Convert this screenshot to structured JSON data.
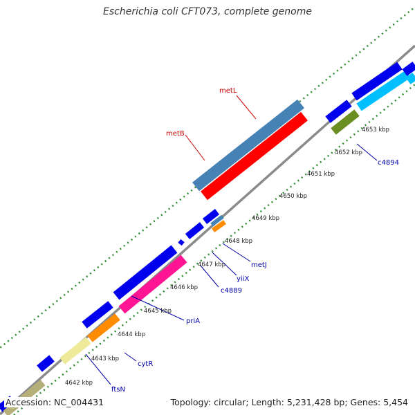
{
  "title": "Escherichia coli CFT073, complete genome",
  "footer": {
    "accession": "Accession: NC_004431",
    "summary": "Topology: circular; Length: 5,231,428 bp; Genes: 5,454"
  },
  "colors": {
    "backbone": "#8a8a8a",
    "tick_dots": "#2e8b2e",
    "label_blue": "#0000aa",
    "label_red": "#cc0000"
  },
  "scale_labels": [
    "4642 kbp",
    "4643 kbp",
    "4644 kbp",
    "4645 kbp",
    "4646 kbp",
    "4647 kbp",
    "4648 kbp",
    "4649 kbp",
    "4650 kbp",
    "4651 kbp",
    "4652 kbp",
    "4653 kbp"
  ],
  "gene_labels": [
    {
      "text": "ftsN",
      "color": "#0000aa"
    },
    {
      "text": "cytR",
      "color": "#0000aa"
    },
    {
      "text": "priA",
      "color": "#0000aa"
    },
    {
      "text": "c4889",
      "color": "#0000aa"
    },
    {
      "text": "yiiX",
      "color": "#0000aa"
    },
    {
      "text": "metJ",
      "color": "#0000aa"
    },
    {
      "text": "c4894",
      "color": "#0000aa"
    },
    {
      "text": "metB",
      "color": "#cc0000"
    },
    {
      "text": "metL",
      "color": "#cc0000"
    }
  ],
  "features": [
    {
      "name": "feature-1",
      "color": "#0000ee"
    },
    {
      "name": "feature-2",
      "color": "#b5b07a"
    },
    {
      "name": "ftsN-gene",
      "color": "#0000ee"
    },
    {
      "name": "feature-4",
      "color": "#eeea9a"
    },
    {
      "name": "cytR-gene",
      "color": "#ff8c00"
    },
    {
      "name": "feature-6",
      "color": "#0000ee"
    },
    {
      "name": "priA-gene",
      "color": "#ff1493"
    },
    {
      "name": "feature-8",
      "color": "#0000ee"
    },
    {
      "name": "c4889-gene",
      "color": "#0000ee"
    },
    {
      "name": "yiiX-gene",
      "color": "#0000ee"
    },
    {
      "name": "metJ-gene",
      "color": "#ff8c00"
    },
    {
      "name": "feature-12",
      "color": "#4682b4"
    },
    {
      "name": "feature-13",
      "color": "#0000ee"
    },
    {
      "name": "metL-gene",
      "color": "#4682b4"
    },
    {
      "name": "metB-gene",
      "color": "#ff0000"
    },
    {
      "name": "feature-16",
      "color": "#0000ee"
    },
    {
      "name": "c4894-gene",
      "color": "#6b8e23"
    },
    {
      "name": "feature-18",
      "color": "#0000ee"
    },
    {
      "name": "feature-19",
      "color": "#00bfff"
    },
    {
      "name": "feature-20",
      "color": "#0000ee"
    },
    {
      "name": "feature-21",
      "color": "#00bfff"
    }
  ]
}
